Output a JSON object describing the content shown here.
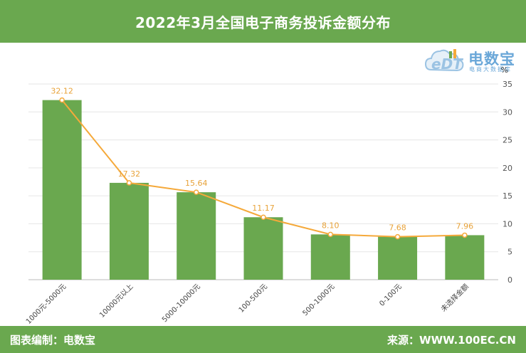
{
  "header": {
    "title": "2022年3月全国电子商务投诉金额分布"
  },
  "logo": {
    "name": "电数宝",
    "subtitle": "电商大数据库",
    "mark": "eDT"
  },
  "footer": {
    "left": "图表编制：电数宝",
    "right": "来源：WWW.100EC.CN"
  },
  "colors": {
    "bar": "#6aa84f",
    "line": "#f5a93a",
    "header": "#6aa84f"
  },
  "chart_data": {
    "type": "bar",
    "title": "2022年3月全国电子商务投诉金额分布",
    "categories": [
      "1000元-5000元",
      "10000元以上",
      "5000-10000元",
      "100-500元",
      "500-1000元",
      "0-100元",
      "未选择金额"
    ],
    "values": [
      32.12,
      17.32,
      15.64,
      11.17,
      8.1,
      7.68,
      7.96
    ],
    "value_labels": [
      "32.12",
      "17.32",
      "15.64",
      "11.17",
      "8.10",
      "7.68",
      "7.96"
    ],
    "overlay_line": true,
    "y_unit": "%",
    "ylim": [
      0,
      35
    ],
    "y_ticks": [
      0,
      5,
      10,
      15,
      20,
      25,
      30,
      35
    ],
    "y_axis_side": "right",
    "grid": true
  }
}
